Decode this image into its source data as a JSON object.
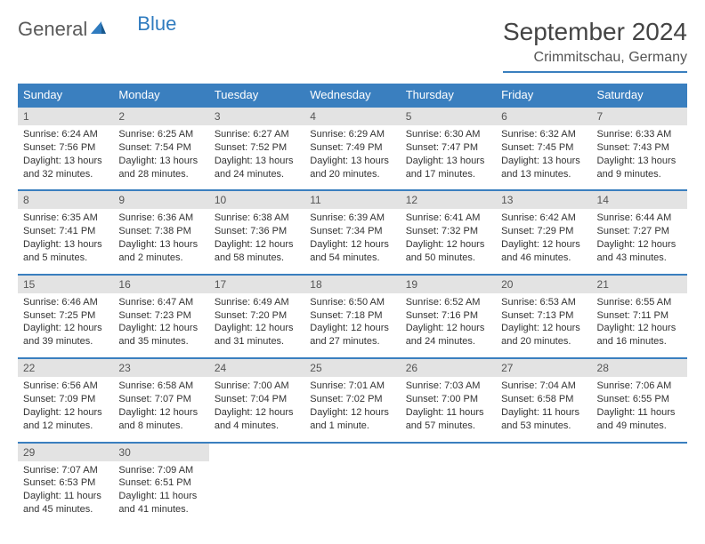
{
  "brand": {
    "part1": "General",
    "part2": "Blue"
  },
  "title": "September 2024",
  "location": "Crimmitschau, Germany",
  "colors": {
    "header_bar": "#3a7fbf",
    "daynum_bg": "#e3e3e3",
    "text": "#333333",
    "brand_gray": "#5a5a5a",
    "brand_blue": "#2f7bbf"
  },
  "typography": {
    "title_fontsize": 28,
    "location_fontsize": 16,
    "dow_fontsize": 13,
    "body_fontsize": 11
  },
  "days_of_week": [
    "Sunday",
    "Monday",
    "Tuesday",
    "Wednesday",
    "Thursday",
    "Friday",
    "Saturday"
  ],
  "weeks": [
    [
      {
        "n": "1",
        "sunrise": "Sunrise: 6:24 AM",
        "sunset": "Sunset: 7:56 PM",
        "day": "Daylight: 13 hours and 32 minutes."
      },
      {
        "n": "2",
        "sunrise": "Sunrise: 6:25 AM",
        "sunset": "Sunset: 7:54 PM",
        "day": "Daylight: 13 hours and 28 minutes."
      },
      {
        "n": "3",
        "sunrise": "Sunrise: 6:27 AM",
        "sunset": "Sunset: 7:52 PM",
        "day": "Daylight: 13 hours and 24 minutes."
      },
      {
        "n": "4",
        "sunrise": "Sunrise: 6:29 AM",
        "sunset": "Sunset: 7:49 PM",
        "day": "Daylight: 13 hours and 20 minutes."
      },
      {
        "n": "5",
        "sunrise": "Sunrise: 6:30 AM",
        "sunset": "Sunset: 7:47 PM",
        "day": "Daylight: 13 hours and 17 minutes."
      },
      {
        "n": "6",
        "sunrise": "Sunrise: 6:32 AM",
        "sunset": "Sunset: 7:45 PM",
        "day": "Daylight: 13 hours and 13 minutes."
      },
      {
        "n": "7",
        "sunrise": "Sunrise: 6:33 AM",
        "sunset": "Sunset: 7:43 PM",
        "day": "Daylight: 13 hours and 9 minutes."
      }
    ],
    [
      {
        "n": "8",
        "sunrise": "Sunrise: 6:35 AM",
        "sunset": "Sunset: 7:41 PM",
        "day": "Daylight: 13 hours and 5 minutes."
      },
      {
        "n": "9",
        "sunrise": "Sunrise: 6:36 AM",
        "sunset": "Sunset: 7:38 PM",
        "day": "Daylight: 13 hours and 2 minutes."
      },
      {
        "n": "10",
        "sunrise": "Sunrise: 6:38 AM",
        "sunset": "Sunset: 7:36 PM",
        "day": "Daylight: 12 hours and 58 minutes."
      },
      {
        "n": "11",
        "sunrise": "Sunrise: 6:39 AM",
        "sunset": "Sunset: 7:34 PM",
        "day": "Daylight: 12 hours and 54 minutes."
      },
      {
        "n": "12",
        "sunrise": "Sunrise: 6:41 AM",
        "sunset": "Sunset: 7:32 PM",
        "day": "Daylight: 12 hours and 50 minutes."
      },
      {
        "n": "13",
        "sunrise": "Sunrise: 6:42 AM",
        "sunset": "Sunset: 7:29 PM",
        "day": "Daylight: 12 hours and 46 minutes."
      },
      {
        "n": "14",
        "sunrise": "Sunrise: 6:44 AM",
        "sunset": "Sunset: 7:27 PM",
        "day": "Daylight: 12 hours and 43 minutes."
      }
    ],
    [
      {
        "n": "15",
        "sunrise": "Sunrise: 6:46 AM",
        "sunset": "Sunset: 7:25 PM",
        "day": "Daylight: 12 hours and 39 minutes."
      },
      {
        "n": "16",
        "sunrise": "Sunrise: 6:47 AM",
        "sunset": "Sunset: 7:23 PM",
        "day": "Daylight: 12 hours and 35 minutes."
      },
      {
        "n": "17",
        "sunrise": "Sunrise: 6:49 AM",
        "sunset": "Sunset: 7:20 PM",
        "day": "Daylight: 12 hours and 31 minutes."
      },
      {
        "n": "18",
        "sunrise": "Sunrise: 6:50 AM",
        "sunset": "Sunset: 7:18 PM",
        "day": "Daylight: 12 hours and 27 minutes."
      },
      {
        "n": "19",
        "sunrise": "Sunrise: 6:52 AM",
        "sunset": "Sunset: 7:16 PM",
        "day": "Daylight: 12 hours and 24 minutes."
      },
      {
        "n": "20",
        "sunrise": "Sunrise: 6:53 AM",
        "sunset": "Sunset: 7:13 PM",
        "day": "Daylight: 12 hours and 20 minutes."
      },
      {
        "n": "21",
        "sunrise": "Sunrise: 6:55 AM",
        "sunset": "Sunset: 7:11 PM",
        "day": "Daylight: 12 hours and 16 minutes."
      }
    ],
    [
      {
        "n": "22",
        "sunrise": "Sunrise: 6:56 AM",
        "sunset": "Sunset: 7:09 PM",
        "day": "Daylight: 12 hours and 12 minutes."
      },
      {
        "n": "23",
        "sunrise": "Sunrise: 6:58 AM",
        "sunset": "Sunset: 7:07 PM",
        "day": "Daylight: 12 hours and 8 minutes."
      },
      {
        "n": "24",
        "sunrise": "Sunrise: 7:00 AM",
        "sunset": "Sunset: 7:04 PM",
        "day": "Daylight: 12 hours and 4 minutes."
      },
      {
        "n": "25",
        "sunrise": "Sunrise: 7:01 AM",
        "sunset": "Sunset: 7:02 PM",
        "day": "Daylight: 12 hours and 1 minute."
      },
      {
        "n": "26",
        "sunrise": "Sunrise: 7:03 AM",
        "sunset": "Sunset: 7:00 PM",
        "day": "Daylight: 11 hours and 57 minutes."
      },
      {
        "n": "27",
        "sunrise": "Sunrise: 7:04 AM",
        "sunset": "Sunset: 6:58 PM",
        "day": "Daylight: 11 hours and 53 minutes."
      },
      {
        "n": "28",
        "sunrise": "Sunrise: 7:06 AM",
        "sunset": "Sunset: 6:55 PM",
        "day": "Daylight: 11 hours and 49 minutes."
      }
    ],
    [
      {
        "n": "29",
        "sunrise": "Sunrise: 7:07 AM",
        "sunset": "Sunset: 6:53 PM",
        "day": "Daylight: 11 hours and 45 minutes."
      },
      {
        "n": "30",
        "sunrise": "Sunrise: 7:09 AM",
        "sunset": "Sunset: 6:51 PM",
        "day": "Daylight: 11 hours and 41 minutes."
      },
      {
        "n": "",
        "sunrise": "",
        "sunset": "",
        "day": ""
      },
      {
        "n": "",
        "sunrise": "",
        "sunset": "",
        "day": ""
      },
      {
        "n": "",
        "sunrise": "",
        "sunset": "",
        "day": ""
      },
      {
        "n": "",
        "sunrise": "",
        "sunset": "",
        "day": ""
      },
      {
        "n": "",
        "sunrise": "",
        "sunset": "",
        "day": ""
      }
    ]
  ]
}
